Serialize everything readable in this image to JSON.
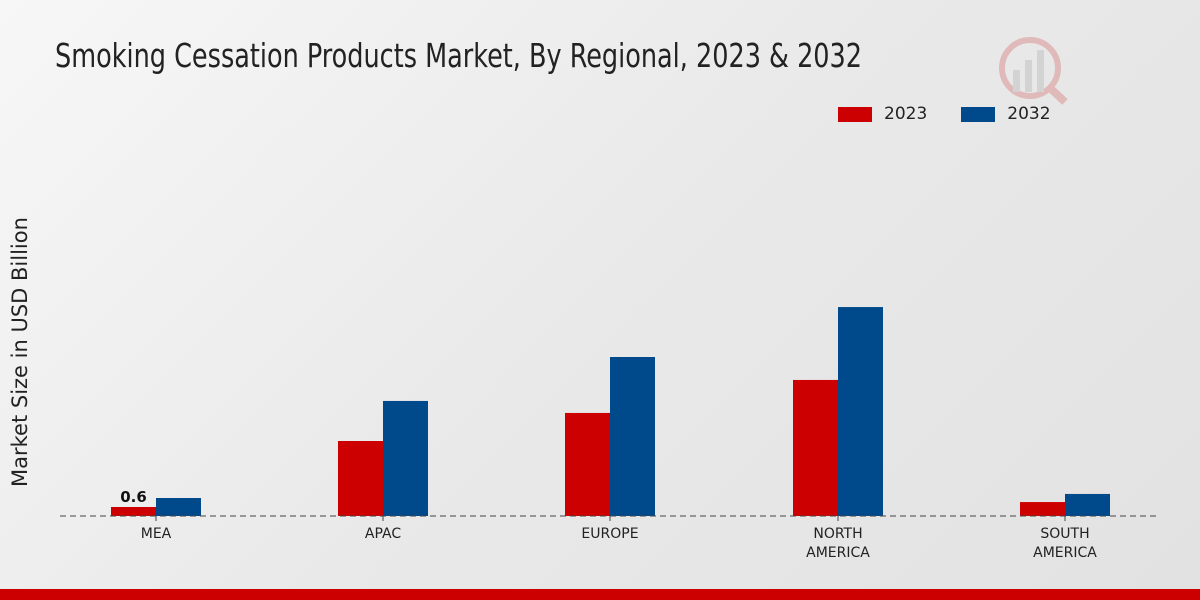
{
  "chart_data": {
    "type": "bar",
    "title": "Smoking Cessation Products Market, By Regional, 2023 & 2032",
    "xlabel": "",
    "ylabel": "Market Size in USD Billion",
    "categories": [
      "MEA",
      "APAC",
      "EUROPE",
      "NORTH\nAMERICA",
      "SOUTH\nAMERICA"
    ],
    "series": [
      {
        "name": "2023",
        "color": "#cc0000",
        "values": [
          0.6,
          5.0,
          6.87,
          9.07,
          0.93
        ]
      },
      {
        "name": "2032",
        "color": "#004a8c",
        "values": [
          1.2,
          7.67,
          10.6,
          13.93,
          1.47
        ]
      }
    ],
    "data_labels": [
      {
        "series": 0,
        "category": 0,
        "text": "0.6"
      }
    ],
    "ylim": [
      0,
      16
    ],
    "grid": false,
    "legend_position": "top-right"
  }
}
